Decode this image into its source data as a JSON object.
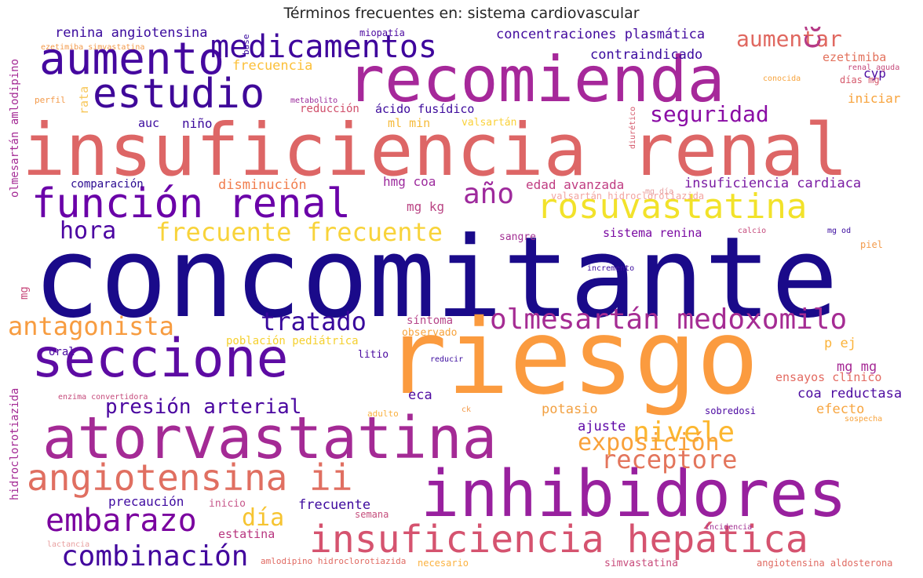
{
  "title": "Términos frecuentes en: sistema cardiovascular",
  "words": [
    {
      "text": "concomitante",
      "color": "#1a0a8a"
    },
    {
      "text": "insuficiencia renal",
      "color": "#dd6666"
    },
    {
      "text": "riesgo",
      "color": "#fb9b3f"
    },
    {
      "text": "recomienda",
      "color": "#a6289a"
    },
    {
      "text": "inhibidores",
      "color": "#98209e"
    },
    {
      "text": "atorvastatina",
      "color": "#a42a95"
    },
    {
      "text": "seccione",
      "color": "#5d0ba3"
    },
    {
      "text": "aumento",
      "color": "#45089f"
    },
    {
      "text": "estudio",
      "color": "#3f0899"
    },
    {
      "text": "función renal",
      "color": "#6a00a8"
    },
    {
      "text": "insuficiencia hepática",
      "color": "#d5536f"
    },
    {
      "text": "rosuvastatina",
      "color": "#f2e22a"
    },
    {
      "text": "medicamentos",
      "color": "#3e049c"
    },
    {
      "text": "olmesartán medoxomilo",
      "color": "#a52c93"
    },
    {
      "text": "angiotensina ii",
      "color": "#e06f61"
    },
    {
      "text": "embarazo",
      "color": "#7a029f"
    },
    {
      "text": "antagonista",
      "color": "#f79c40"
    },
    {
      "text": "tratado",
      "color": "#38089c"
    },
    {
      "text": "frecuente frecuente",
      "color": "#f8d33a"
    },
    {
      "text": "combinación",
      "color": "#43079e"
    },
    {
      "text": "nivele",
      "color": "#fcb730"
    },
    {
      "text": "receptore",
      "color": "#e3755c"
    },
    {
      "text": "exposición",
      "color": "#f9a13a"
    },
    {
      "text": "presión arterial",
      "color": "#4a06a0"
    },
    {
      "text": "hora",
      "color": "#4c04a2"
    },
    {
      "text": "año",
      "color": "#9e2a9c"
    },
    {
      "text": "aumentar",
      "color": "#e06860"
    },
    {
      "text": "caso",
      "color": "#b53a86"
    },
    {
      "text": "seguridad",
      "color": "#8a0da5"
    },
    {
      "text": "día",
      "color": "#f6c432"
    },
    {
      "text": "renina angiotensina",
      "color": "#3b0a9d"
    },
    {
      "text": "concentraciones plasmática",
      "color": "#420a9e"
    },
    {
      "text": "contraindicado",
      "color": "#3a0a9e"
    },
    {
      "text": "frecuencia",
      "color": "#fcc03a"
    },
    {
      "text": "insuficiencia cardiaca",
      "color": "#7a1ba3"
    },
    {
      "text": "edad avanzada",
      "color": "#c03d82"
    },
    {
      "text": "disminución",
      "color": "#f17d4d"
    },
    {
      "text": "hmg coa",
      "color": "#9d2b9d"
    },
    {
      "text": "mg kg",
      "color": "#ba4584"
    },
    {
      "text": "sistema renina",
      "color": "#7a0aa2"
    },
    {
      "text": "potasio",
      "color": "#f2a041"
    },
    {
      "text": "coa reductasa",
      "color": "#4d0ba0"
    },
    {
      "text": "efecto",
      "color": "#f7a540"
    },
    {
      "text": "ajuste",
      "color": "#5c04a6"
    },
    {
      "text": "eca",
      "color": "#4f0ba1"
    },
    {
      "text": "mg mg",
      "color": "#a62b96"
    },
    {
      "text": "p ej",
      "color": "#fbb33a"
    },
    {
      "text": "ensayos clínico",
      "color": "#e36a61"
    },
    {
      "text": "precaución",
      "color": "#3f0aa0"
    },
    {
      "text": "frecuente",
      "color": "#3e0a9e"
    },
    {
      "text": "estatina",
      "color": "#b8357f"
    },
    {
      "text": "iniciar",
      "color": "#f7a33c"
    },
    {
      "text": "ezetimiba",
      "color": "#e3725d"
    },
    {
      "text": "cyp",
      "color": "#4a0aa0"
    },
    {
      "text": "auc",
      "color": "#3b0a9e"
    },
    {
      "text": "niño",
      "color": "#3c0a9c"
    },
    {
      "text": "ml min",
      "color": "#f5ba3a"
    },
    {
      "text": "comparación",
      "color": "#2a0a90"
    },
    {
      "text": "reducción",
      "color": "#d04f6b"
    },
    {
      "text": "ácido fusídico",
      "color": "#3c0a9c"
    },
    {
      "text": "valsartán",
      "color": "#fad13a"
    },
    {
      "text": "síntoma",
      "color": "#b6458a"
    },
    {
      "text": "observado",
      "color": "#f7a33c"
    },
    {
      "text": "población pediátrica",
      "color": "#f5d030"
    },
    {
      "text": "oral",
      "color": "#4a0aa0"
    },
    {
      "text": "litio",
      "color": "#4a0aa0"
    },
    {
      "text": "sangre",
      "color": "#a23093"
    },
    {
      "text": "mg",
      "color": "#c84a7c"
    },
    {
      "text": "inicio",
      "color": "#c7578a"
    },
    {
      "text": "semana",
      "color": "#c54e7c"
    },
    {
      "text": "adulto",
      "color": "#f9b140"
    },
    {
      "text": "sobredosi",
      "color": "#4d0aa2"
    },
    {
      "text": "necesario",
      "color": "#fbb240"
    },
    {
      "text": "simvastatina",
      "color": "#c84b7b"
    },
    {
      "text": "angiotensina aldosterona",
      "color": "#e06a62"
    },
    {
      "text": "amlodipino hidroclorotiazida",
      "color": "#e06a62"
    },
    {
      "text": "miopatía",
      "color": "#4d0aa0"
    },
    {
      "text": "metabolito",
      "color": "#9b2a9c"
    },
    {
      "text": "ezetimiba simvastatina",
      "color": "#f39a4a"
    },
    {
      "text": "perfil",
      "color": "#f39a4a"
    },
    {
      "text": "renal aguda",
      "color": "#c54a7b"
    },
    {
      "text": "conocida",
      "color": "#f7a33c"
    },
    {
      "text": "días mg",
      "color": "#d5596b"
    },
    {
      "text": "valsartán hidroclorotiazida",
      "color": "#f2a4a0"
    },
    {
      "text": "mg día",
      "color": "#e8a0a0"
    },
    {
      "text": "piel",
      "color": "#f39a4a"
    },
    {
      "text": "calcio",
      "color": "#c54a7b"
    },
    {
      "text": "mg od",
      "color": "#3a0a9e"
    },
    {
      "text": "incremento",
      "color": "#3a0a9e"
    },
    {
      "text": "reducir",
      "color": "#3a0a9e"
    },
    {
      "text": "enzima convertidora",
      "color": "#c54a7b"
    },
    {
      "text": "ck",
      "color": "#f39a4a"
    },
    {
      "text": "sospecha",
      "color": "#f7a33c"
    },
    {
      "text": "incidencia",
      "color": "#a23093"
    },
    {
      "text": "lactancia",
      "color": "#e8a0a0"
    },
    {
      "text": "olmesartán amlodipino",
      "color": "#a42a95"
    },
    {
      "text": "hidroclorotiazida",
      "color": "#a42a95"
    },
    {
      "text": "rata",
      "color": "#f7c75a"
    },
    {
      "text": "base",
      "color": "#3a0a9e"
    },
    {
      "text": "diurético",
      "color": "#d5596b"
    }
  ]
}
